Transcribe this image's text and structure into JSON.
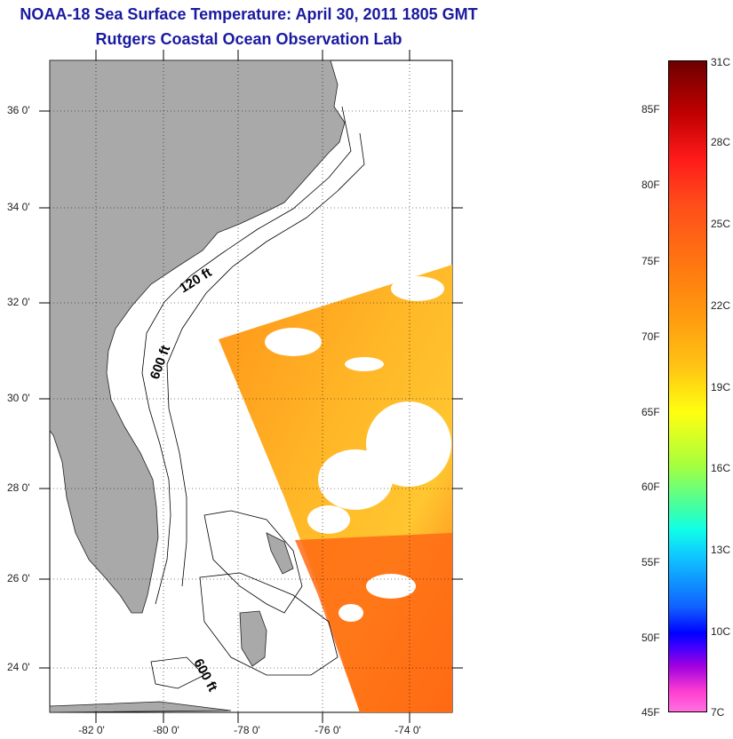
{
  "title": "NOAA-18 Sea Surface Temperature:  April 30, 2011 1805 GMT",
  "subtitle": "Rutgers Coastal Ocean Observation Lab",
  "lat_labels": [
    "36 0'",
    "34 0'",
    "32 0'",
    "30 0'",
    "28 0'",
    "26 0'",
    "24 0'"
  ],
  "lon_labels": [
    "-82 0'",
    "-80 0'",
    "-78 0'",
    "-76 0'",
    "-74 0'"
  ],
  "contour_labels": {
    "c120": "120 ft",
    "c600a": "600 ft",
    "c600b": "600 ft"
  },
  "colorbar": {
    "fahrenheit": [
      "85F",
      "80F",
      "75F",
      "70F",
      "65F",
      "60F",
      "55F",
      "50F",
      "45F"
    ],
    "celsius": [
      "31C",
      "28C",
      "25C",
      "22C",
      "19C",
      "16C",
      "13C",
      "10C",
      "7C"
    ]
  },
  "colors": {
    "land": "#a9a9a9",
    "title": "#1a1aa0",
    "sst_warm": "#ff8c1a",
    "sst_mid": "#ffb020"
  }
}
